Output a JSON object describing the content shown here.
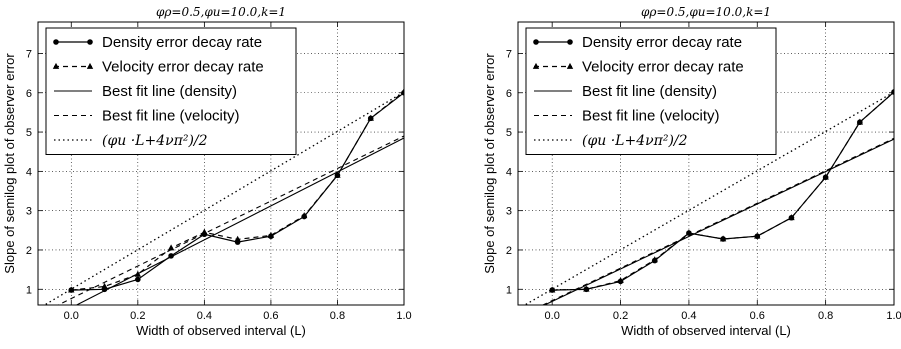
{
  "chart_data": [
    {
      "type": "line",
      "title": "φρ=0.5,φu=10.0,k=1",
      "xlabel": "Width of observed interval (L)",
      "ylabel": "Slope of semilog plot of observer error",
      "xlim": [
        -0.1,
        1.0
      ],
      "ylim": [
        0.6,
        7.8
      ],
      "xticks": [
        "0.0",
        "0.2",
        "0.4",
        "0.6",
        "0.8",
        "1.0"
      ],
      "yticks": [
        "1",
        "2",
        "3",
        "4",
        "5",
        "6",
        "7"
      ],
      "grid": true,
      "legend": "top-left",
      "series": [
        {
          "name": "Density error decay rate",
          "style": "solid-circle",
          "x": [
            0.0,
            0.1,
            0.2,
            0.3,
            0.4,
            0.5,
            0.6,
            0.7,
            0.8,
            0.9,
            1.0
          ],
          "y": [
            0.98,
            1.0,
            1.25,
            1.85,
            2.4,
            2.2,
            2.35,
            2.85,
            3.9,
            5.35,
            6.0
          ]
        },
        {
          "name": "Velocity error decay rate",
          "style": "dashed-triangle",
          "x": [
            0.0,
            0.1,
            0.2,
            0.3,
            0.4,
            0.5,
            0.6,
            0.7,
            0.8,
            0.9,
            1.0
          ],
          "y": [
            0.98,
            1.07,
            1.38,
            2.05,
            2.45,
            2.27,
            2.37,
            2.87,
            3.9,
            5.35,
            6.03
          ]
        },
        {
          "name": "Best fit line (density)",
          "style": "solid",
          "x": [
            -0.1,
            1.0
          ],
          "y": [
            0.1,
            4.85
          ]
        },
        {
          "name": "Best fit line (velocity)",
          "style": "dashed",
          "x": [
            -0.1,
            1.0
          ],
          "y": [
            0.35,
            4.9
          ]
        },
        {
          "name": "(φu ·L+4νπ²)/2",
          "style": "dotted",
          "x": [
            -0.1,
            1.0
          ],
          "y": [
            0.5,
            6.02
          ]
        }
      ]
    },
    {
      "type": "line",
      "title": "φρ=0.5,φu=10.0,k=1",
      "xlabel": "Width of observed interval (L)",
      "ylabel": "Slope of semilog plot of observer error",
      "xlim": [
        -0.1,
        1.0
      ],
      "ylim": [
        0.6,
        7.8
      ],
      "xticks": [
        "0.0",
        "0.2",
        "0.4",
        "0.6",
        "0.8",
        "1.0"
      ],
      "yticks": [
        "1",
        "2",
        "3",
        "4",
        "5",
        "6",
        "7"
      ],
      "grid": true,
      "legend": "top-left",
      "series": [
        {
          "name": "Density error decay rate",
          "style": "solid-circle",
          "x": [
            0.0,
            0.1,
            0.2,
            0.3,
            0.4,
            0.5,
            0.6,
            0.7,
            0.8,
            0.9,
            1.0
          ],
          "y": [
            0.98,
            1.0,
            1.2,
            1.73,
            2.43,
            2.28,
            2.35,
            2.82,
            3.85,
            5.25,
            6.02
          ]
        },
        {
          "name": "Velocity error decay rate",
          "style": "dashed-triangle",
          "x": [
            0.0,
            0.1,
            0.2,
            0.3,
            0.4,
            0.5,
            0.6,
            0.7,
            0.8,
            0.9,
            1.0
          ],
          "y": [
            0.98,
            1.0,
            1.22,
            1.75,
            2.43,
            2.28,
            2.35,
            2.82,
            3.85,
            5.25,
            6.02
          ]
        },
        {
          "name": "Best fit line (density)",
          "style": "solid",
          "x": [
            -0.1,
            1.0
          ],
          "y": [
            0.28,
            4.82
          ]
        },
        {
          "name": "Best fit line (velocity)",
          "style": "dashed",
          "x": [
            -0.1,
            1.0
          ],
          "y": [
            0.3,
            4.84
          ]
        },
        {
          "name": "(φu ·L+4νπ²)/2",
          "style": "dotted",
          "x": [
            -0.1,
            1.0
          ],
          "y": [
            0.5,
            6.02
          ]
        }
      ]
    }
  ]
}
